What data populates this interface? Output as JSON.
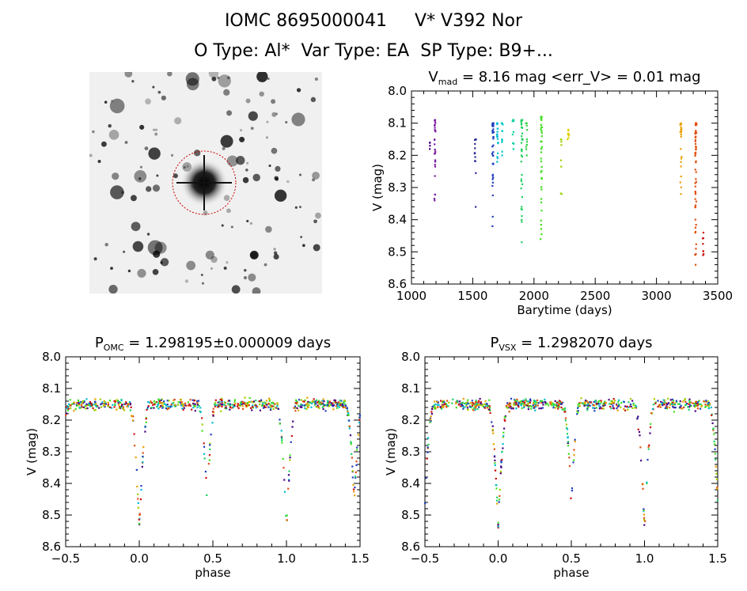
{
  "header": {
    "line1": "IOMC 8695000041     V* V392 Nor",
    "line2": "O Type: Al*  Var Type: EA  SP Type: B9+..."
  },
  "image_panel": {
    "description_icon": "sky-image",
    "target_marker_color": "#cc0000"
  },
  "chart_data": [
    {
      "type": "scatter",
      "title_main": "V",
      "title_sub": "mad",
      "title_rest": " = 8.16 mag <err_V> = 0.01 mag",
      "xlabel": "Barytime (days)",
      "ylabel": "V (mag)",
      "xlim": [
        1000,
        3500
      ],
      "ylim": [
        8.6,
        8.0
      ],
      "xticks": [
        1000,
        1500,
        2000,
        2500,
        3000,
        3500
      ],
      "xtick_labels": [
        "1000",
        "1500",
        "2000",
        "2500",
        "3000",
        "3500"
      ],
      "yticks": [
        8.0,
        8.1,
        8.2,
        8.3,
        8.4,
        8.5,
        8.6
      ],
      "ytick_labels": [
        "8.0",
        "8.1",
        "8.2",
        "8.3",
        "8.4",
        "8.5",
        "8.6"
      ],
      "groups": [
        {
          "x": 1150,
          "ymin": 8.16,
          "ymax": 8.18,
          "color": "#4b0082",
          "n": 4
        },
        {
          "x": 1190,
          "ymin": 8.09,
          "ymax": 8.34,
          "color": "#7a1fa0",
          "n": 30
        },
        {
          "x": 1520,
          "ymin": 8.15,
          "ymax": 8.36,
          "color": "#2c2c9a",
          "n": 12
        },
        {
          "x": 1665,
          "ymin": 8.1,
          "ymax": 8.42,
          "color": "#1f3fbf",
          "n": 40
        },
        {
          "x": 1700,
          "ymin": 8.1,
          "ymax": 8.22,
          "color": "#00bcd4",
          "n": 20
        },
        {
          "x": 1740,
          "ymin": 8.1,
          "ymax": 8.2,
          "color": "#00c8c8",
          "n": 10
        },
        {
          "x": 1830,
          "ymin": 8.09,
          "ymax": 8.18,
          "color": "#00d0a0",
          "n": 10
        },
        {
          "x": 1900,
          "ymin": 8.09,
          "ymax": 8.47,
          "color": "#20d060",
          "n": 40
        },
        {
          "x": 1940,
          "ymin": 8.1,
          "ymax": 8.2,
          "color": "#30d040",
          "n": 10
        },
        {
          "x": 2060,
          "ymin": 8.08,
          "ymax": 8.46,
          "color": "#40e020",
          "n": 40
        },
        {
          "x": 2220,
          "ymin": 8.15,
          "ymax": 8.32,
          "color": "#a0d000",
          "n": 8
        },
        {
          "x": 2280,
          "ymin": 8.12,
          "ymax": 8.15,
          "color": "#e0d000",
          "n": 8
        },
        {
          "x": 3200,
          "ymin": 8.1,
          "ymax": 8.32,
          "color": "#e8a000",
          "n": 25
        },
        {
          "x": 3320,
          "ymin": 8.1,
          "ymax": 8.54,
          "color": "#e05010",
          "n": 60
        },
        {
          "x": 3380,
          "ymin": 8.44,
          "ymax": 8.51,
          "color": "#cc1010",
          "n": 8
        }
      ]
    },
    {
      "type": "scatter",
      "title_main": "P",
      "title_sub": "OMC",
      "title_rest": " = 1.298195±0.000009 days",
      "xlabel": "phase",
      "ylabel": "V (mag)",
      "xlim": [
        -0.5,
        1.5
      ],
      "ylim": [
        8.6,
        8.0
      ],
      "xticks": [
        -0.5,
        0.0,
        0.5,
        1.0,
        1.5
      ],
      "xtick_labels": [
        "−0.5",
        "0.0",
        "0.5",
        "1.0",
        "1.5"
      ],
      "yticks": [
        8.0,
        8.1,
        8.2,
        8.3,
        8.4,
        8.5,
        8.6
      ],
      "ytick_labels": [
        "8.0",
        "8.1",
        "8.2",
        "8.3",
        "8.4",
        "8.5",
        "8.6"
      ],
      "light_curve": {
        "baseline": 8.15,
        "primary_depth": 8.54,
        "primary_phase": 0.0,
        "secondary_depth": 8.46,
        "secondary_phase": 0.46
      }
    },
    {
      "type": "scatter",
      "title_main": "P",
      "title_sub": "VSX",
      "title_rest": " = 1.2982070 days",
      "xlabel": "phase",
      "ylabel": "V (mag)",
      "xlim": [
        -0.5,
        1.5
      ],
      "ylim": [
        8.6,
        8.0
      ],
      "xticks": [
        -0.5,
        0.0,
        0.5,
        1.0,
        1.5
      ],
      "xtick_labels": [
        "−0.5",
        "0.0",
        "0.5",
        "1.0",
        "1.5"
      ],
      "yticks": [
        8.0,
        8.1,
        8.2,
        8.3,
        8.4,
        8.5,
        8.6
      ],
      "ytick_labels": [
        "8.0",
        "8.1",
        "8.2",
        "8.3",
        "8.4",
        "8.5",
        "8.6"
      ],
      "light_curve": {
        "baseline": 8.15,
        "primary_depth": 8.54,
        "primary_phase": 0.0,
        "secondary_depth": 8.46,
        "secondary_phase": 0.5
      }
    }
  ]
}
